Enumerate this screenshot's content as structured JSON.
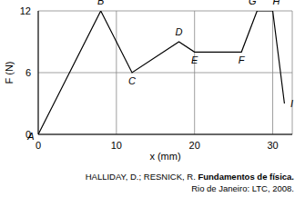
{
  "chart_data": {
    "type": "line",
    "x": [
      0,
      8,
      12,
      18,
      20,
      26,
      28,
      30,
      31.5
    ],
    "values": [
      0,
      12,
      6,
      9,
      8,
      8,
      12,
      12,
      3
    ],
    "point_labels": [
      "A",
      "B",
      "C",
      "D",
      "E",
      "F",
      "G",
      "H",
      "I"
    ],
    "xlabel": "x (mm)",
    "ylabel": "F (N)",
    "xlim": [
      0,
      32.5
    ],
    "xticks": [
      0,
      10,
      20,
      30
    ],
    "ylim": [
      0,
      12
    ],
    "yticks": [
      0,
      6,
      12
    ],
    "grid": true,
    "color": "#000000",
    "caption": {
      "authors": "HALLIDAY, D.; RESNICK, R.",
      "title": "Fundamentos de física.",
      "publisher": "Rio de Janeiro: LTC, 2008."
    }
  }
}
